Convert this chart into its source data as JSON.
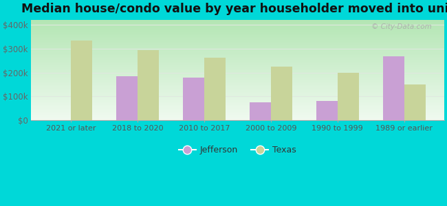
{
  "categories": [
    "2021 or later",
    "2018 to 2020",
    "2010 to 2017",
    "2000 to 2009",
    "1990 to 1999",
    "1989 or earlier"
  ],
  "jefferson_values": [
    0,
    185000,
    180000,
    75000,
    80000,
    268000
  ],
  "texas_values": [
    335000,
    295000,
    262000,
    225000,
    198000,
    150000
  ],
  "jefferson_color": "#c9a0d4",
  "texas_color": "#c8d49a",
  "title": "Median house/condo value by year householder moved into unit",
  "title_fontsize": 12.5,
  "ylim": [
    0,
    420000
  ],
  "yticks": [
    0,
    100000,
    200000,
    300000,
    400000
  ],
  "ytick_labels": [
    "$0",
    "$100k",
    "$200k",
    "$300k",
    "$400k"
  ],
  "bg_top_color": "#f0faf0",
  "bg_bottom_color": "#c8f0c8",
  "outer_background": "#00d8d8",
  "bar_width": 0.32,
  "legend_labels": [
    "Jefferson",
    "Texas"
  ],
  "watermark": "© City-Data.com",
  "grid_color": "#e0e8e0"
}
